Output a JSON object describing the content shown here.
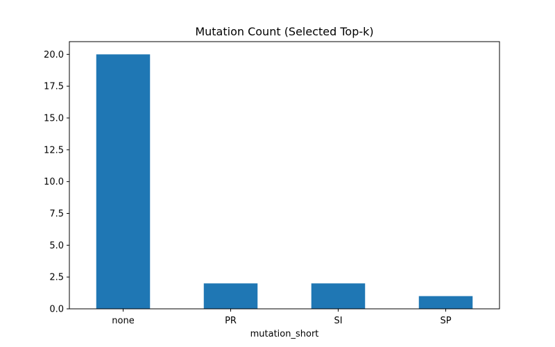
{
  "chart_data": {
    "type": "bar",
    "title": "Mutation Count (Selected Top-k)",
    "xlabel": "mutation_short",
    "ylabel": "",
    "categories": [
      "none",
      "PR",
      "SI",
      "SP"
    ],
    "values": [
      20,
      2,
      2,
      1
    ],
    "ylim": [
      0,
      21
    ],
    "yticks": [
      0.0,
      2.5,
      5.0,
      7.5,
      10.0,
      12.5,
      15.0,
      17.5,
      20.0
    ],
    "ytick_labels": [
      "0.0",
      "2.5",
      "5.0",
      "7.5",
      "10.0",
      "12.5",
      "15.0",
      "17.5",
      "20.0"
    ],
    "bar_color": "#1f77b4",
    "grid": false,
    "legend": "none"
  }
}
